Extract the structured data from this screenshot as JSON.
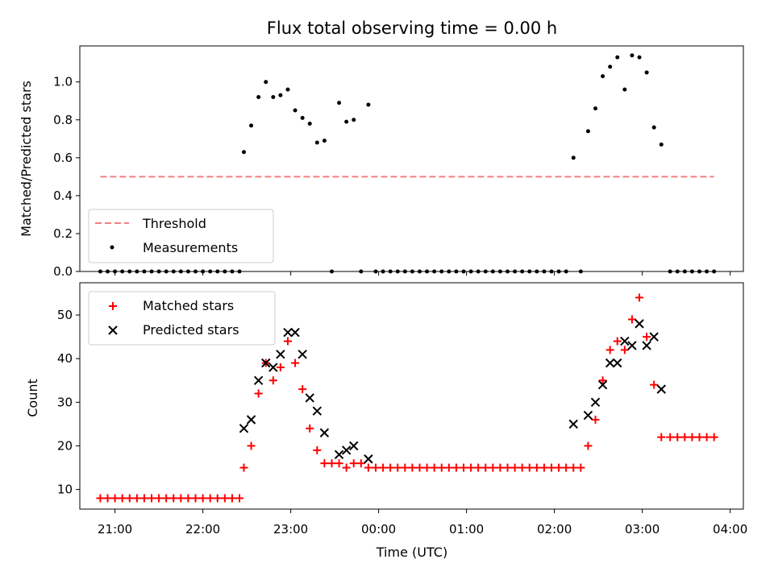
{
  "title": "Flux total observing time = 0.00 h",
  "colors": {
    "threshold": "#f08080",
    "measurement": "#000000",
    "matched": "#ff0000",
    "predicted": "#000000"
  },
  "chart_data": [
    {
      "type": "scatter",
      "ylabel": "Matched/Predicted stars",
      "ylim": [
        0,
        1.19
      ],
      "yticks": [
        0.0,
        0.2,
        0.4,
        0.6,
        0.8,
        1.0
      ],
      "ytick_labels": [
        "0.0",
        "0.2",
        "0.4",
        "0.6",
        "0.8",
        "1.0"
      ],
      "legend": {
        "position": "lower-left",
        "threshold_label": "Threshold",
        "measurement_label": "Measurements"
      },
      "threshold": {
        "value": 0.5,
        "x_start": "20:50",
        "x_end": "03:49"
      },
      "measurements": [
        {
          "x": "20:50",
          "y": 0.0
        },
        {
          "x": "20:55",
          "y": 0.0
        },
        {
          "x": "21:00",
          "y": 0.0
        },
        {
          "x": "21:05",
          "y": 0.0
        },
        {
          "x": "21:10",
          "y": 0.0
        },
        {
          "x": "21:15",
          "y": 0.0
        },
        {
          "x": "21:20",
          "y": 0.0
        },
        {
          "x": "21:25",
          "y": 0.0
        },
        {
          "x": "21:30",
          "y": 0.0
        },
        {
          "x": "21:35",
          "y": 0.0
        },
        {
          "x": "21:40",
          "y": 0.0
        },
        {
          "x": "21:45",
          "y": 0.0
        },
        {
          "x": "21:50",
          "y": 0.0
        },
        {
          "x": "21:55",
          "y": 0.0
        },
        {
          "x": "22:00",
          "y": 0.0
        },
        {
          "x": "22:05",
          "y": 0.0
        },
        {
          "x": "22:10",
          "y": 0.0
        },
        {
          "x": "22:15",
          "y": 0.0
        },
        {
          "x": "22:20",
          "y": 0.0
        },
        {
          "x": "22:25",
          "y": 0.0
        },
        {
          "x": "22:28",
          "y": 0.63
        },
        {
          "x": "22:33",
          "y": 0.77
        },
        {
          "x": "22:38",
          "y": 0.92
        },
        {
          "x": "22:43",
          "y": 1.0
        },
        {
          "x": "22:48",
          "y": 0.92
        },
        {
          "x": "22:53",
          "y": 0.93
        },
        {
          "x": "22:58",
          "y": 0.96
        },
        {
          "x": "23:03",
          "y": 0.85
        },
        {
          "x": "23:08",
          "y": 0.81
        },
        {
          "x": "23:13",
          "y": 0.78
        },
        {
          "x": "23:18",
          "y": 0.68
        },
        {
          "x": "23:23",
          "y": 0.69
        },
        {
          "x": "23:28",
          "y": 0.0
        },
        {
          "x": "23:33",
          "y": 0.89
        },
        {
          "x": "23:38",
          "y": 0.79
        },
        {
          "x": "23:43",
          "y": 0.8
        },
        {
          "x": "23:48",
          "y": 0.0
        },
        {
          "x": "23:53",
          "y": 0.88
        },
        {
          "x": "23:58",
          "y": 0.0
        },
        {
          "x": "00:03",
          "y": 0.0
        },
        {
          "x": "00:08",
          "y": 0.0
        },
        {
          "x": "00:13",
          "y": 0.0
        },
        {
          "x": "00:18",
          "y": 0.0
        },
        {
          "x": "00:23",
          "y": 0.0
        },
        {
          "x": "00:28",
          "y": 0.0
        },
        {
          "x": "00:33",
          "y": 0.0
        },
        {
          "x": "00:38",
          "y": 0.0
        },
        {
          "x": "00:43",
          "y": 0.0
        },
        {
          "x": "00:48",
          "y": 0.0
        },
        {
          "x": "00:53",
          "y": 0.0
        },
        {
          "x": "00:58",
          "y": 0.0
        },
        {
          "x": "01:03",
          "y": 0.0
        },
        {
          "x": "01:08",
          "y": 0.0
        },
        {
          "x": "01:13",
          "y": 0.0
        },
        {
          "x": "01:18",
          "y": 0.0
        },
        {
          "x": "01:23",
          "y": 0.0
        },
        {
          "x": "01:28",
          "y": 0.0
        },
        {
          "x": "01:33",
          "y": 0.0
        },
        {
          "x": "01:38",
          "y": 0.0
        },
        {
          "x": "01:43",
          "y": 0.0
        },
        {
          "x": "01:48",
          "y": 0.0
        },
        {
          "x": "01:53",
          "y": 0.0
        },
        {
          "x": "01:58",
          "y": 0.0
        },
        {
          "x": "02:03",
          "y": 0.0
        },
        {
          "x": "02:08",
          "y": 0.0
        },
        {
          "x": "02:13",
          "y": 0.6
        },
        {
          "x": "02:18",
          "y": 0.0
        },
        {
          "x": "02:23",
          "y": 0.74
        },
        {
          "x": "02:28",
          "y": 0.86
        },
        {
          "x": "02:33",
          "y": 1.03
        },
        {
          "x": "02:38",
          "y": 1.08
        },
        {
          "x": "02:43",
          "y": 1.13
        },
        {
          "x": "02:48",
          "y": 0.96
        },
        {
          "x": "02:53",
          "y": 1.14
        },
        {
          "x": "02:58",
          "y": 1.13
        },
        {
          "x": "03:03",
          "y": 1.05
        },
        {
          "x": "03:08",
          "y": 0.76
        },
        {
          "x": "03:13",
          "y": 0.67
        },
        {
          "x": "03:19",
          "y": 0.0
        },
        {
          "x": "03:24",
          "y": 0.0
        },
        {
          "x": "03:29",
          "y": 0.0
        },
        {
          "x": "03:34",
          "y": 0.0
        },
        {
          "x": "03:39",
          "y": 0.0
        },
        {
          "x": "03:44",
          "y": 0.0
        },
        {
          "x": "03:49",
          "y": 0.0
        }
      ]
    },
    {
      "type": "scatter",
      "xlabel": "Time (UTC)",
      "ylabel": "Count",
      "ylim": [
        5.5,
        57.4
      ],
      "yticks": [
        10,
        20,
        30,
        40,
        50
      ],
      "ytick_labels": [
        "10",
        "20",
        "30",
        "40",
        "50"
      ],
      "xlim": [
        "20:36",
        "04:09"
      ],
      "xtick_labels": [
        "21:00",
        "22:00",
        "23:00",
        "00:00",
        "01:00",
        "02:00",
        "03:00",
        "04:00"
      ],
      "legend": {
        "position": "upper-left",
        "matched_label": "Matched stars",
        "predicted_label": "Predicted stars"
      },
      "matched": [
        {
          "x": "20:50",
          "y": 8
        },
        {
          "x": "20:55",
          "y": 8
        },
        {
          "x": "21:00",
          "y": 8
        },
        {
          "x": "21:05",
          "y": 8
        },
        {
          "x": "21:10",
          "y": 8
        },
        {
          "x": "21:15",
          "y": 8
        },
        {
          "x": "21:20",
          "y": 8
        },
        {
          "x": "21:25",
          "y": 8
        },
        {
          "x": "21:30",
          "y": 8
        },
        {
          "x": "21:35",
          "y": 8
        },
        {
          "x": "21:40",
          "y": 8
        },
        {
          "x": "21:45",
          "y": 8
        },
        {
          "x": "21:50",
          "y": 8
        },
        {
          "x": "21:55",
          "y": 8
        },
        {
          "x": "22:00",
          "y": 8
        },
        {
          "x": "22:05",
          "y": 8
        },
        {
          "x": "22:10",
          "y": 8
        },
        {
          "x": "22:15",
          "y": 8
        },
        {
          "x": "22:20",
          "y": 8
        },
        {
          "x": "22:25",
          "y": 8
        },
        {
          "x": "22:28",
          "y": 15
        },
        {
          "x": "22:33",
          "y": 20
        },
        {
          "x": "22:38",
          "y": 32
        },
        {
          "x": "22:43",
          "y": 39
        },
        {
          "x": "22:48",
          "y": 35
        },
        {
          "x": "22:53",
          "y": 38
        },
        {
          "x": "22:58",
          "y": 44
        },
        {
          "x": "23:03",
          "y": 39
        },
        {
          "x": "23:08",
          "y": 33
        },
        {
          "x": "23:13",
          "y": 24
        },
        {
          "x": "23:18",
          "y": 19
        },
        {
          "x": "23:23",
          "y": 16
        },
        {
          "x": "23:28",
          "y": 16
        },
        {
          "x": "23:33",
          "y": 16
        },
        {
          "x": "23:38",
          "y": 15
        },
        {
          "x": "23:43",
          "y": 16
        },
        {
          "x": "23:48",
          "y": 16
        },
        {
          "x": "23:53",
          "y": 15
        },
        {
          "x": "23:58",
          "y": 15
        },
        {
          "x": "00:03",
          "y": 15
        },
        {
          "x": "00:08",
          "y": 15
        },
        {
          "x": "00:13",
          "y": 15
        },
        {
          "x": "00:18",
          "y": 15
        },
        {
          "x": "00:23",
          "y": 15
        },
        {
          "x": "00:28",
          "y": 15
        },
        {
          "x": "00:33",
          "y": 15
        },
        {
          "x": "00:38",
          "y": 15
        },
        {
          "x": "00:43",
          "y": 15
        },
        {
          "x": "00:48",
          "y": 15
        },
        {
          "x": "00:53",
          "y": 15
        },
        {
          "x": "00:58",
          "y": 15
        },
        {
          "x": "01:03",
          "y": 15
        },
        {
          "x": "01:08",
          "y": 15
        },
        {
          "x": "01:13",
          "y": 15
        },
        {
          "x": "01:18",
          "y": 15
        },
        {
          "x": "01:23",
          "y": 15
        },
        {
          "x": "01:28",
          "y": 15
        },
        {
          "x": "01:33",
          "y": 15
        },
        {
          "x": "01:38",
          "y": 15
        },
        {
          "x": "01:43",
          "y": 15
        },
        {
          "x": "01:48",
          "y": 15
        },
        {
          "x": "01:53",
          "y": 15
        },
        {
          "x": "01:58",
          "y": 15
        },
        {
          "x": "02:03",
          "y": 15
        },
        {
          "x": "02:08",
          "y": 15
        },
        {
          "x": "02:13",
          "y": 15
        },
        {
          "x": "02:18",
          "y": 15
        },
        {
          "x": "02:23",
          "y": 20
        },
        {
          "x": "02:28",
          "y": 26
        },
        {
          "x": "02:33",
          "y": 35
        },
        {
          "x": "02:38",
          "y": 42
        },
        {
          "x": "02:43",
          "y": 44
        },
        {
          "x": "02:48",
          "y": 42
        },
        {
          "x": "02:53",
          "y": 49
        },
        {
          "x": "02:58",
          "y": 54
        },
        {
          "x": "03:03",
          "y": 45
        },
        {
          "x": "03:08",
          "y": 34
        },
        {
          "x": "03:13",
          "y": 22
        },
        {
          "x": "03:19",
          "y": 22
        },
        {
          "x": "03:24",
          "y": 22
        },
        {
          "x": "03:29",
          "y": 22
        },
        {
          "x": "03:34",
          "y": 22
        },
        {
          "x": "03:39",
          "y": 22
        },
        {
          "x": "03:44",
          "y": 22
        },
        {
          "x": "03:49",
          "y": 22
        }
      ],
      "predicted": [
        {
          "x": "22:28",
          "y": 24
        },
        {
          "x": "22:33",
          "y": 26
        },
        {
          "x": "22:38",
          "y": 35
        },
        {
          "x": "22:43",
          "y": 39
        },
        {
          "x": "22:48",
          "y": 38
        },
        {
          "x": "22:53",
          "y": 41
        },
        {
          "x": "22:58",
          "y": 46
        },
        {
          "x": "23:03",
          "y": 46
        },
        {
          "x": "23:08",
          "y": 41
        },
        {
          "x": "23:13",
          "y": 31
        },
        {
          "x": "23:18",
          "y": 28
        },
        {
          "x": "23:23",
          "y": 23
        },
        {
          "x": "23:33",
          "y": 18
        },
        {
          "x": "23:38",
          "y": 19
        },
        {
          "x": "23:43",
          "y": 20
        },
        {
          "x": "23:53",
          "y": 17
        },
        {
          "x": "02:13",
          "y": 25
        },
        {
          "x": "02:23",
          "y": 27
        },
        {
          "x": "02:28",
          "y": 30
        },
        {
          "x": "02:33",
          "y": 34
        },
        {
          "x": "02:38",
          "y": 39
        },
        {
          "x": "02:43",
          "y": 39
        },
        {
          "x": "02:48",
          "y": 44
        },
        {
          "x": "02:53",
          "y": 43
        },
        {
          "x": "02:58",
          "y": 48
        },
        {
          "x": "03:03",
          "y": 43
        },
        {
          "x": "03:08",
          "y": 45
        },
        {
          "x": "03:13",
          "y": 33
        }
      ]
    }
  ]
}
